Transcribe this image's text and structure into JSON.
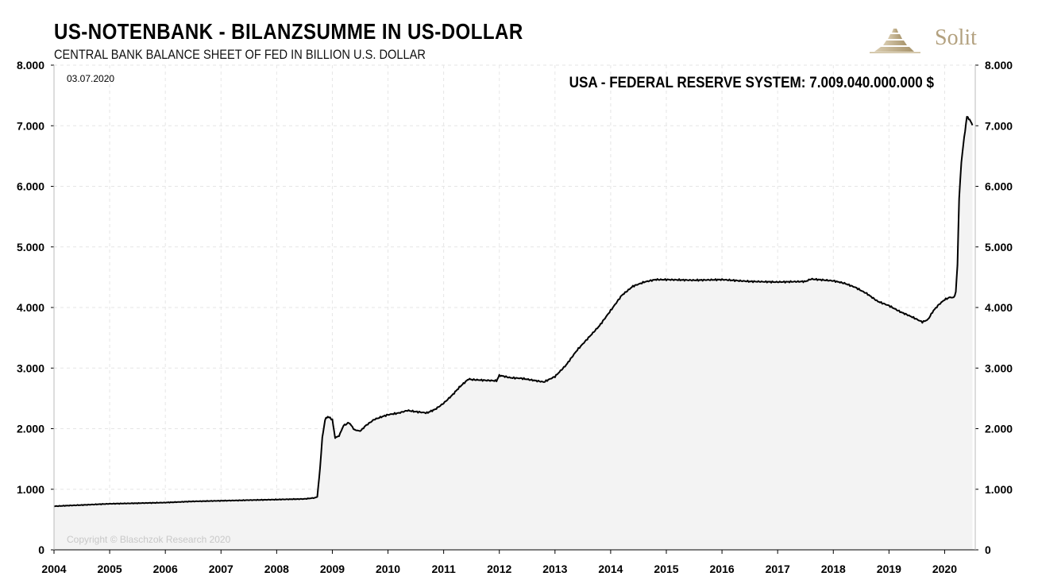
{
  "title": "US-NOTENBANK - BILANZSUMME IN US-DOLLAR",
  "subtitle": "CENTRAL BANK BALANCE SHEET OF FED IN BILLION U.S. DOLLAR",
  "brand": "Solit",
  "date_label": "03.07.2020",
  "annotation": "USA - FEDERAL RESERVE SYSTEM: 7.009.040.000.000 $",
  "copyright": "Copyright © Blaschzok Research 2020",
  "colors": {
    "line": "#000000",
    "area": "#f3f3f3",
    "grid": "#e6e6e6",
    "brand": "#b3a17f"
  },
  "chart_data": {
    "type": "area",
    "xlabel": "",
    "ylabel": "",
    "xlim": [
      2004,
      2020.55
    ],
    "ylim": [
      0,
      8000
    ],
    "y_ticks": [
      0,
      1000,
      2000,
      3000,
      4000,
      5000,
      6000,
      7000,
      8000
    ],
    "y_tick_labels": [
      "0",
      "1.000",
      "2.000",
      "3.000",
      "4.000",
      "5.000",
      "6.000",
      "7.000",
      "8.000"
    ],
    "x_tick_labels": [
      "2004",
      "2005",
      "2006",
      "2007",
      "2008",
      "2009",
      "2010",
      "2011",
      "2012",
      "2013",
      "2014",
      "2015",
      "2016",
      "2017",
      "2018",
      "2019",
      "2020"
    ],
    "grid": true,
    "legend": "none",
    "series": [
      {
        "x": [
          2004.0,
          2004.5,
          2005.0,
          2005.5,
          2006.0,
          2006.5,
          2007.0,
          2007.5,
          2008.0,
          2008.5,
          2008.7,
          2008.73,
          2008.78,
          2008.82,
          2008.87,
          2008.92,
          2009.0,
          2009.05,
          2009.12,
          2009.2,
          2009.3,
          2009.4,
          2009.5,
          2009.6,
          2009.75,
          2009.9,
          2010.0,
          2010.2,
          2010.35,
          2010.5,
          2010.6,
          2010.7,
          2010.85,
          2011.0,
          2011.15,
          2011.3,
          2011.45,
          2011.5,
          2011.7,
          2011.95,
          2012.0,
          2012.2,
          2012.4,
          2012.6,
          2012.8,
          2013.0,
          2013.2,
          2013.4,
          2013.6,
          2013.8,
          2014.0,
          2014.2,
          2014.4,
          2014.6,
          2014.8,
          2015.0,
          2015.5,
          2016.0,
          2016.5,
          2017.0,
          2017.5,
          2017.6,
          2018.0,
          2018.2,
          2018.4,
          2018.6,
          2018.8,
          2019.0,
          2019.2,
          2019.4,
          2019.6,
          2019.7,
          2019.8,
          2019.9,
          2020.0,
          2020.1,
          2020.16,
          2020.2,
          2020.23,
          2020.26,
          2020.3,
          2020.35,
          2020.4,
          2020.45,
          2020.5
        ],
        "values": [
          720,
          740,
          760,
          770,
          780,
          800,
          810,
          820,
          830,
          840,
          860,
          880,
          1350,
          1850,
          2150,
          2200,
          2150,
          1850,
          1880,
          2050,
          2100,
          1980,
          1960,
          2050,
          2150,
          2200,
          2230,
          2260,
          2300,
          2280,
          2270,
          2260,
          2320,
          2420,
          2550,
          2700,
          2820,
          2810,
          2800,
          2790,
          2880,
          2840,
          2830,
          2800,
          2770,
          2860,
          3050,
          3300,
          3500,
          3700,
          3950,
          4200,
          4350,
          4420,
          4460,
          4460,
          4450,
          4460,
          4430,
          4420,
          4430,
          4470,
          4440,
          4400,
          4330,
          4230,
          4100,
          4030,
          3930,
          3850,
          3760,
          3800,
          3950,
          4050,
          4130,
          4170,
          4160,
          4250,
          4700,
          5800,
          6400,
          6800,
          7150,
          7100,
          7009
        ]
      }
    ]
  }
}
